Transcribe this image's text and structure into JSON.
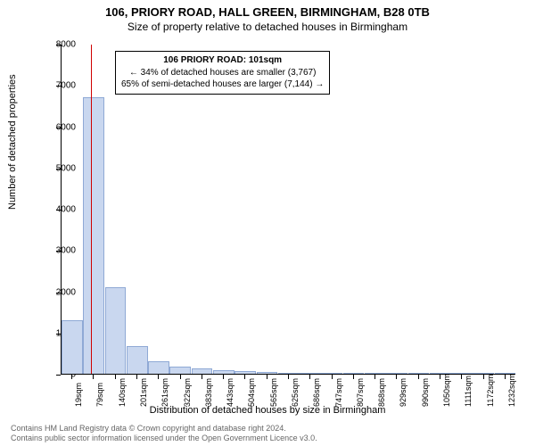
{
  "title": "106, PRIORY ROAD, HALL GREEN, BIRMINGHAM, B28 0TB",
  "subtitle": "Size of property relative to detached houses in Birmingham",
  "y_axis": {
    "label": "Number of detached properties",
    "min": 0,
    "max": 8000,
    "ticks": [
      0,
      1000,
      2000,
      3000,
      4000,
      5000,
      6000,
      7000,
      8000
    ],
    "label_fontsize": 11,
    "tick_fontsize": 10
  },
  "x_axis": {
    "label": "Distribution of detached houses by size in Birmingham",
    "ticks": [
      "19sqm",
      "79sqm",
      "140sqm",
      "201sqm",
      "261sqm",
      "322sqm",
      "383sqm",
      "443sqm",
      "504sqm",
      "565sqm",
      "625sqm",
      "686sqm",
      "747sqm",
      "807sqm",
      "868sqm",
      "929sqm",
      "990sqm",
      "1050sqm",
      "1111sqm",
      "1172sqm",
      "1232sqm"
    ],
    "label_fontsize": 11,
    "tick_fontsize": 9
  },
  "chart": {
    "type": "histogram",
    "bar_fill": "#c9d7ef",
    "bar_stroke": "#8fa9d5",
    "background": "#ffffff",
    "values": [
      1300,
      6700,
      2100,
      680,
      300,
      180,
      120,
      80,
      60,
      40,
      30,
      20,
      18,
      15,
      12,
      10,
      8,
      7,
      6,
      5,
      4
    ]
  },
  "marker": {
    "color": "#d00000",
    "position_sqm": 101,
    "info_box": {
      "line1": "106 PRIORY ROAD: 101sqm",
      "line2": "← 34% of detached houses are smaller (3,767)",
      "line3": "65% of semi-detached houses are larger (7,144) →"
    }
  },
  "footer": {
    "line1": "Contains HM Land Registry data © Crown copyright and database right 2024.",
    "line2": "Contains public sector information licensed under the Open Government Licence v3.0."
  },
  "style": {
    "title_fontsize": 13,
    "subtitle_fontsize": 12,
    "text_color": "#000000",
    "footer_color": "#666666"
  }
}
